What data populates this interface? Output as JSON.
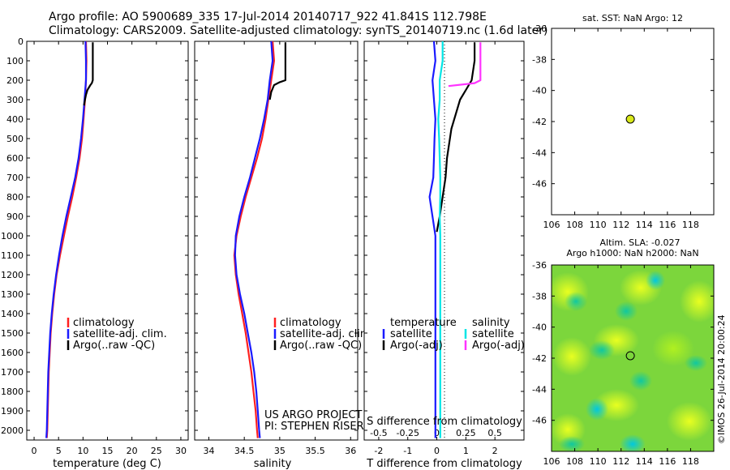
{
  "header": {
    "title_line1": "Argo profile: AO 5900689_335 17-Jul-2014 20140717_922 41.841S 112.798E",
    "title_line2": "Climatology: CARS2009. Satellite-adjusted climatology: synTS_20140719.nc (1.6d later)"
  },
  "colors": {
    "climatology": "#ff2020",
    "satellite": "#1a1aff",
    "argo": "#000000",
    "satellite_s": "#00e5e5",
    "argo_s": "#ff33ff",
    "marker": "#d8e81a"
  },
  "legends": {
    "temperature": [
      "climatology",
      "satellite-adj. clim.",
      "Argo(..raw -QC)"
    ],
    "salinity": [
      "climatology",
      "satellite-adj. clim.",
      "Argo(..raw -QC)"
    ],
    "difference": {
      "temp_title": "temperature",
      "sal_title": "salinity",
      "temp_items": [
        "satellite",
        "Argo(-adj)"
      ],
      "sal_items": [
        "satellite",
        "Argo(-adj)"
      ]
    }
  },
  "annotations": {
    "project_line1": "US ARGO PROJECT",
    "project_line2": "PI: STEPHEN RISER",
    "watermark": "©IMOS 26-Jul-2014 20:00:24"
  },
  "map_titles": {
    "sst": "sat. SST: NaN Argo: 12",
    "sla_line1": "Altim. SLA: -0.027",
    "sla_line2": "Argo h1000: NaN h2000: NaN"
  },
  "chart_data": [
    {
      "type": "line",
      "xlabel": "temperature (deg C)",
      "ylabel": "",
      "xlim": [
        -1.5,
        31.5
      ],
      "ylim": [
        2050,
        0
      ],
      "x_ticks": [
        "0",
        "5",
        "10",
        "15",
        "20",
        "25",
        "30"
      ],
      "y_ticks": [
        "0",
        "100",
        "200",
        "300",
        "400",
        "500",
        "600",
        "700",
        "800",
        "900",
        "1000",
        "1100",
        "1200",
        "1300",
        "1400",
        "1500",
        "1600",
        "1700",
        "1800",
        "1900",
        "2000"
      ],
      "series": [
        {
          "name": "climatology",
          "x": [
            10.6,
            10.7,
            10.6,
            10.4,
            10.1,
            9.8,
            9.3,
            8.6,
            7.8,
            6.9,
            6.1,
            5.3,
            4.6,
            4.1,
            3.7,
            3.4,
            3.2,
            3.0,
            2.9,
            2.8,
            2.7,
            2.6
          ],
          "y": [
            0,
            100,
            200,
            300,
            400,
            500,
            600,
            700,
            800,
            900,
            1000,
            1100,
            1200,
            1300,
            1400,
            1500,
            1600,
            1700,
            1800,
            1900,
            2000,
            2040
          ]
        },
        {
          "name": "satellite-adj. clim.",
          "x": [
            10.5,
            10.6,
            10.6,
            10.3,
            10.0,
            9.6,
            9.1,
            8.4,
            7.5,
            6.6,
            5.8,
            5.1,
            4.5,
            4.0,
            3.6,
            3.3,
            3.1,
            2.9,
            2.8,
            2.7,
            2.6,
            2.5
          ],
          "y": [
            0,
            100,
            200,
            300,
            400,
            500,
            600,
            700,
            800,
            900,
            1000,
            1100,
            1200,
            1300,
            1400,
            1500,
            1600,
            1700,
            1800,
            1900,
            2000,
            2040
          ]
        },
        {
          "name": "Argo(..raw -QC)",
          "x": [
            12.0,
            12.0,
            12.0,
            11.8,
            11.5,
            10.9,
            10.6,
            10.4,
            10.2
          ],
          "y": [
            5,
            100,
            200,
            215,
            225,
            250,
            275,
            300,
            330
          ]
        }
      ]
    },
    {
      "type": "line",
      "xlabel": "salinity",
      "ylabel": "",
      "xlim": [
        33.8,
        36.1
      ],
      "ylim": [
        2050,
        0
      ],
      "x_ticks": [
        "34",
        "34.5",
        "35",
        "35.5",
        "36"
      ],
      "series": [
        {
          "name": "climatology",
          "x": [
            34.9,
            34.92,
            34.88,
            34.84,
            34.8,
            34.75,
            34.68,
            34.6,
            34.52,
            34.45,
            34.39,
            34.36,
            34.38,
            34.42,
            34.47,
            34.52,
            34.56,
            34.6,
            34.63,
            34.66,
            34.68,
            34.69
          ],
          "y": [
            0,
            100,
            200,
            300,
            400,
            500,
            600,
            700,
            800,
            900,
            1000,
            1100,
            1200,
            1300,
            1400,
            1500,
            1600,
            1700,
            1800,
            1900,
            2000,
            2040
          ]
        },
        {
          "name": "satellite-adj. clim.",
          "x": [
            34.88,
            34.9,
            34.86,
            34.83,
            34.78,
            34.72,
            34.65,
            34.58,
            34.5,
            34.43,
            34.38,
            34.37,
            34.39,
            34.44,
            34.5,
            34.55,
            34.6,
            34.64,
            34.67,
            34.69,
            34.71,
            34.72
          ],
          "y": [
            0,
            100,
            200,
            300,
            400,
            500,
            600,
            700,
            800,
            900,
            1000,
            1100,
            1200,
            1300,
            1400,
            1500,
            1600,
            1700,
            1800,
            1900,
            2000,
            2040
          ]
        },
        {
          "name": "Argo(..raw -QC)",
          "x": [
            35.08,
            35.08,
            35.08,
            35.0,
            34.92,
            34.88,
            34.86
          ],
          "y": [
            5,
            100,
            200,
            210,
            225,
            260,
            300
          ]
        }
      ]
    },
    {
      "type": "line",
      "xlabel": "T difference from climatology",
      "ylabel": "",
      "title": "S difference from climatology",
      "xlim": [
        -2.5,
        3.0
      ],
      "ylim": [
        2050,
        0
      ],
      "x_ticks": [
        "-2",
        "-1",
        "0",
        "1",
        "2"
      ],
      "top_ticks": [
        "-0.5",
        "-0.25",
        "0",
        "0.25",
        "0.5"
      ],
      "series": [
        {
          "name": "temperature satellite",
          "x": [
            -0.1,
            -0.05,
            -0.15,
            -0.1,
            -0.05,
            -0.08,
            -0.1,
            -0.12,
            -0.25,
            -0.15,
            -0.05,
            -0.05,
            -0.05,
            -0.05,
            -0.05,
            -0.05,
            -0.05,
            -0.05,
            -0.05,
            -0.05,
            -0.05
          ],
          "y": [
            0,
            100,
            200,
            300,
            400,
            500,
            600,
            700,
            800,
            900,
            1000,
            1100,
            1200,
            1300,
            1400,
            1500,
            1600,
            1700,
            1800,
            1900,
            2040
          ]
        },
        {
          "name": "temperature Argo(-adj)",
          "x": [
            1.3,
            1.3,
            1.2,
            1.0,
            0.8,
            0.5,
            0.35,
            0.3,
            0.2,
            0.1,
            0.0
          ],
          "y": [
            5,
            100,
            200,
            250,
            300,
            450,
            600,
            700,
            800,
            900,
            980
          ]
        },
        {
          "name": "salinity satellite",
          "x": [
            0.2,
            0.2,
            0.1,
            0.1,
            0.05,
            0.08,
            0.1,
            0.12,
            0.12,
            0.1,
            0.12,
            0.12,
            0.12,
            0.12,
            0.12,
            0.12,
            0.12,
            0.12,
            0.12,
            0.12
          ],
          "y": [
            0,
            100,
            200,
            300,
            400,
            500,
            600,
            700,
            800,
            900,
            1000,
            1100,
            1200,
            1300,
            1400,
            1500,
            1600,
            1700,
            1800,
            2040
          ]
        },
        {
          "name": "salinity Argo(-adj)",
          "x": [
            1.5,
            1.5,
            1.5,
            1.3,
            0.4
          ],
          "y": [
            5,
            100,
            200,
            215,
            230
          ]
        }
      ]
    },
    {
      "type": "scatter",
      "title": "sat. SST: NaN Argo: 12",
      "xlim": [
        106,
        120
      ],
      "ylim": [
        -48,
        -36
      ],
      "x_ticks": [
        "106",
        "108",
        "110",
        "112",
        "114",
        "116",
        "118"
      ],
      "y_ticks": [
        "-36",
        "-38",
        "-40",
        "-42",
        "-44",
        "-46"
      ],
      "points": [
        {
          "x": 112.798,
          "y": -41.841
        }
      ]
    },
    {
      "type": "heatmap",
      "title": "Altim. SLA: -0.027",
      "subtitle": "Argo h1000: NaN h2000: NaN",
      "xlim": [
        106,
        120
      ],
      "ylim": [
        -48,
        -36
      ],
      "x_ticks": [
        "106",
        "108",
        "110",
        "112",
        "114",
        "116",
        "118"
      ],
      "y_ticks": [
        "-36",
        "-38",
        "-40",
        "-42",
        "-44",
        "-46"
      ],
      "points": [
        {
          "x": 112.798,
          "y": -41.841
        }
      ]
    }
  ]
}
